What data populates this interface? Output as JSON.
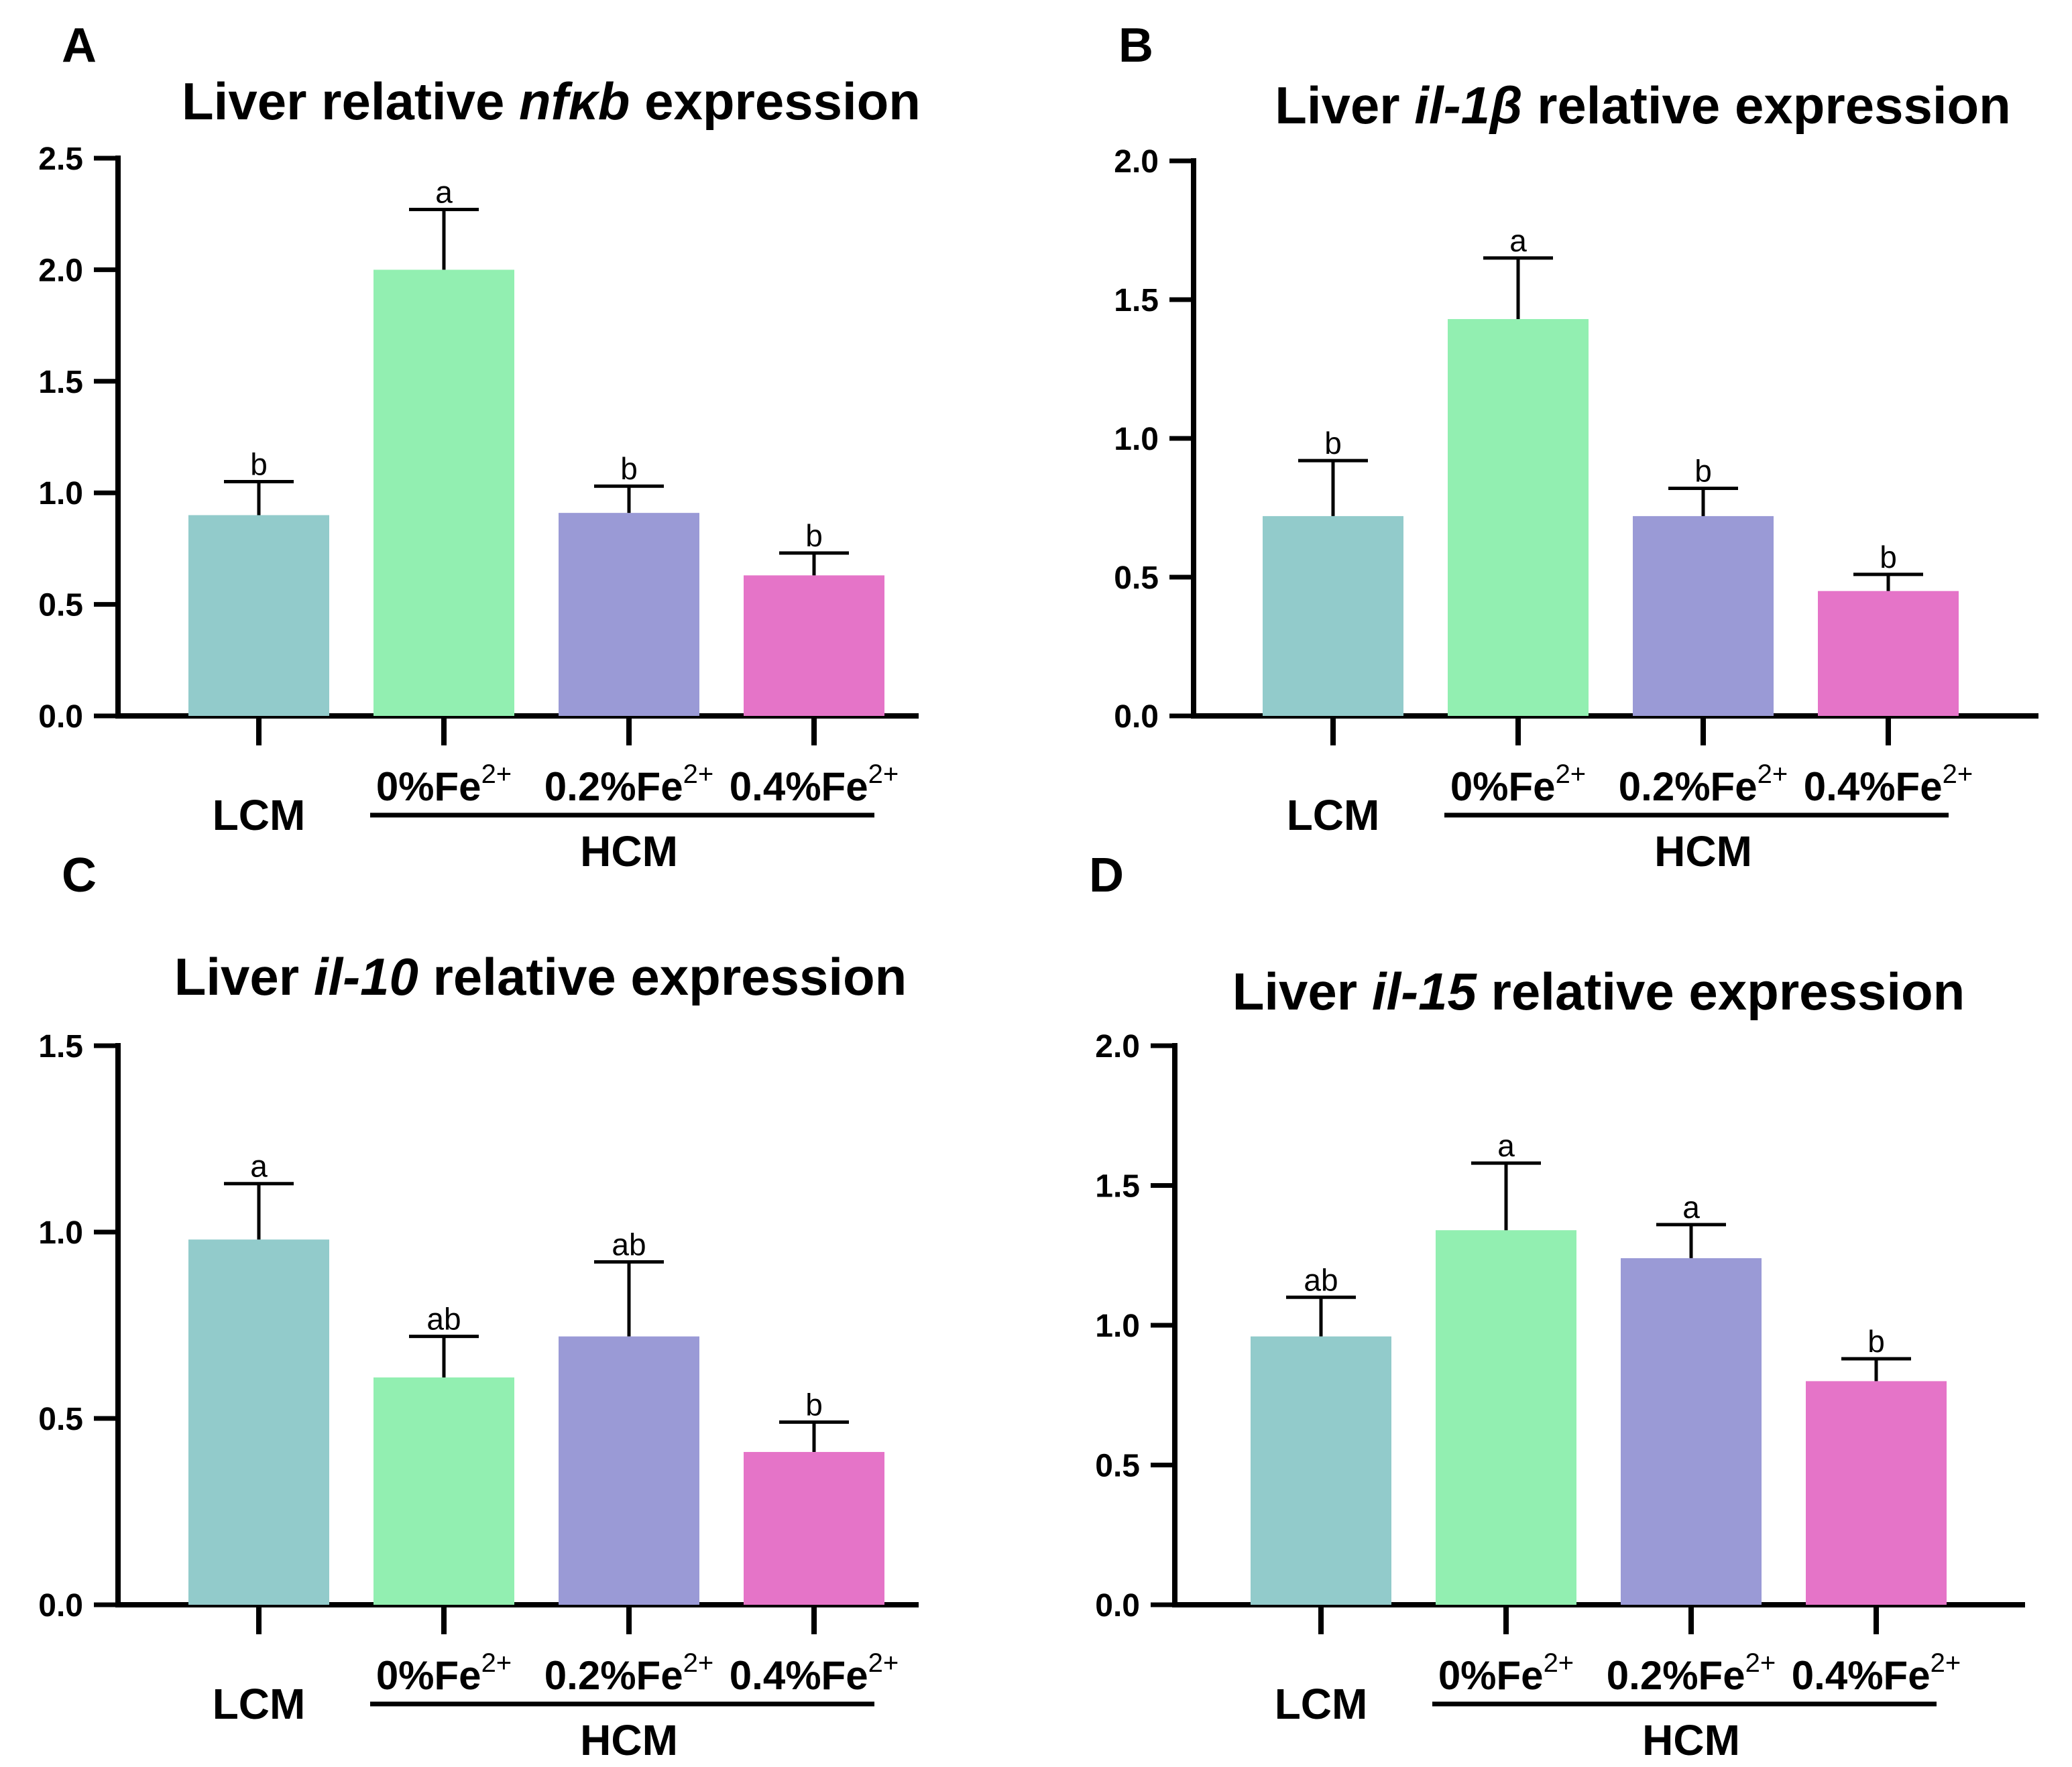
{
  "chart_data": [
    {
      "panel": "A",
      "type": "bar",
      "title": {
        "prefix": "Liver relative ",
        "gene": "nfκb",
        "suffix": " expression"
      },
      "categories": [
        "LCM",
        "0%Fe2+",
        "0.2%Fe2+",
        "0.4%Fe2+"
      ],
      "values": [
        0.9,
        2.0,
        0.91,
        0.63
      ],
      "errors": [
        0.15,
        0.27,
        0.12,
        0.1
      ],
      "significance": [
        "b",
        "a",
        "b",
        "b"
      ],
      "ylim": [
        0,
        2.5
      ],
      "yticks": [
        "0.0",
        "0.5",
        "1.0",
        "1.5",
        "2.0",
        "2.5"
      ],
      "group_label": "HCM"
    },
    {
      "panel": "B",
      "type": "bar",
      "title": {
        "prefix": "Liver ",
        "gene": "il-1β",
        "suffix": "  relative expression"
      },
      "categories": [
        "LCM",
        "0%Fe2+",
        "0.2%Fe2+",
        "0.4%Fe2+"
      ],
      "values": [
        0.72,
        1.43,
        0.72,
        0.45
      ],
      "errors": [
        0.2,
        0.22,
        0.1,
        0.06
      ],
      "significance": [
        "b",
        "a",
        "b",
        "b"
      ],
      "ylim": [
        0,
        2.0
      ],
      "yticks": [
        "0.0",
        "0.5",
        "1.0",
        "1.5",
        "2.0"
      ],
      "group_label": "HCM"
    },
    {
      "panel": "C",
      "type": "bar",
      "title": {
        "prefix": "Liver ",
        "gene": "il-10",
        "suffix": "  relative expression"
      },
      "categories": [
        "LCM",
        "0%Fe2+",
        "0.2%Fe2+",
        "0.4%Fe2+"
      ],
      "values": [
        0.98,
        0.61,
        0.72,
        0.41
      ],
      "errors": [
        0.15,
        0.11,
        0.2,
        0.08
      ],
      "significance": [
        "a",
        "ab",
        "ab",
        "b"
      ],
      "ylim": [
        0,
        1.5
      ],
      "yticks": [
        "0.0",
        "0.5",
        "1.0",
        "1.5"
      ],
      "group_label": "HCM"
    },
    {
      "panel": "D",
      "type": "bar",
      "title": {
        "prefix": "Liver ",
        "gene": "il-15",
        "suffix": "  relative expression"
      },
      "categories": [
        "LCM",
        "0%Fe2+",
        "0.2%Fe2+",
        "0.4%Fe2+"
      ],
      "values": [
        0.96,
        1.34,
        1.24,
        0.8
      ],
      "errors": [
        0.14,
        0.24,
        0.12,
        0.08
      ],
      "significance": [
        "ab",
        "a",
        "a",
        "b"
      ],
      "ylim": [
        0,
        2.0
      ],
      "yticks": [
        "0.0",
        "0.5",
        "1.0",
        "1.5",
        "2.0"
      ],
      "group_label": "HCM"
    }
  ],
  "colors": {
    "LCM": "#92cbcb",
    "0%Fe2+": "#92efb1",
    "0.2%Fe2+": "#9a9ad6",
    "0.4%Fe2+": "#e574c8",
    "axis": "#000000"
  }
}
